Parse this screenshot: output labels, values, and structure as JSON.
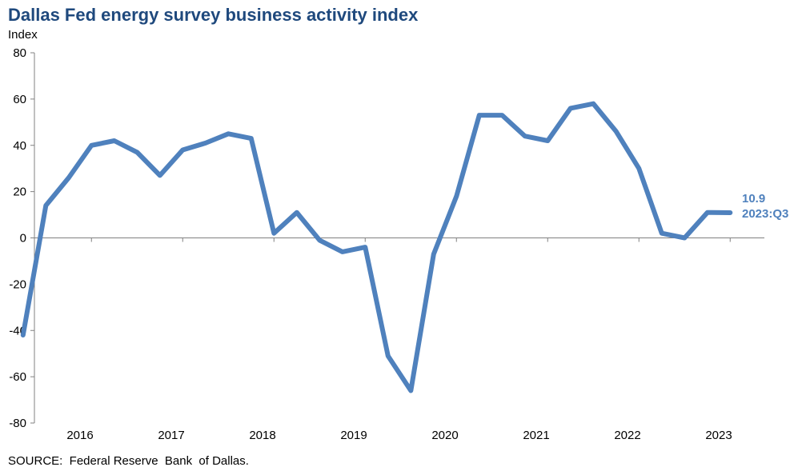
{
  "chart_data": {
    "type": "line",
    "title": "Dallas Fed energy survey business activity index",
    "ylabel": "Index",
    "xlabel": "",
    "ylim": [
      -80,
      80
    ],
    "yticks": [
      80,
      60,
      40,
      20,
      0,
      -20,
      -40,
      -60,
      -80
    ],
    "xtick_labels": [
      "2016",
      "2017",
      "2018",
      "2019",
      "2020",
      "2021",
      "2022",
      "2023"
    ],
    "grid": false,
    "series": [
      {
        "color": "#4f81bd",
        "x": [
          "2015:Q4",
          "2016:Q1",
          "2016:Q2",
          "2016:Q3",
          "2016:Q4",
          "2017:Q1",
          "2017:Q2",
          "2017:Q3",
          "2017:Q4",
          "2018:Q1",
          "2018:Q2",
          "2018:Q3",
          "2018:Q4",
          "2019:Q1",
          "2019:Q2",
          "2019:Q3",
          "2019:Q4",
          "2020:Q1",
          "2020:Q2",
          "2020:Q3",
          "2020:Q4",
          "2021:Q1",
          "2021:Q2",
          "2021:Q3",
          "2021:Q4",
          "2022:Q1",
          "2022:Q2",
          "2022:Q3",
          "2022:Q4",
          "2023:Q1",
          "2023:Q2",
          "2023:Q3"
        ],
        "values": [
          -42,
          14,
          26,
          40,
          42,
          37,
          27,
          38,
          41,
          45,
          43,
          2,
          11,
          -1,
          -6,
          -4,
          -51,
          -66,
          -7,
          18,
          53,
          53,
          44,
          42,
          56,
          58,
          46,
          30,
          2,
          0,
          11,
          10.9
        ]
      }
    ],
    "annotations": [
      {
        "value": "10.9",
        "label": "2023:Q3",
        "color": "#4f81bd"
      }
    ]
  },
  "source": "SOURCE:  Federal Reserve  Bank  of Dallas."
}
